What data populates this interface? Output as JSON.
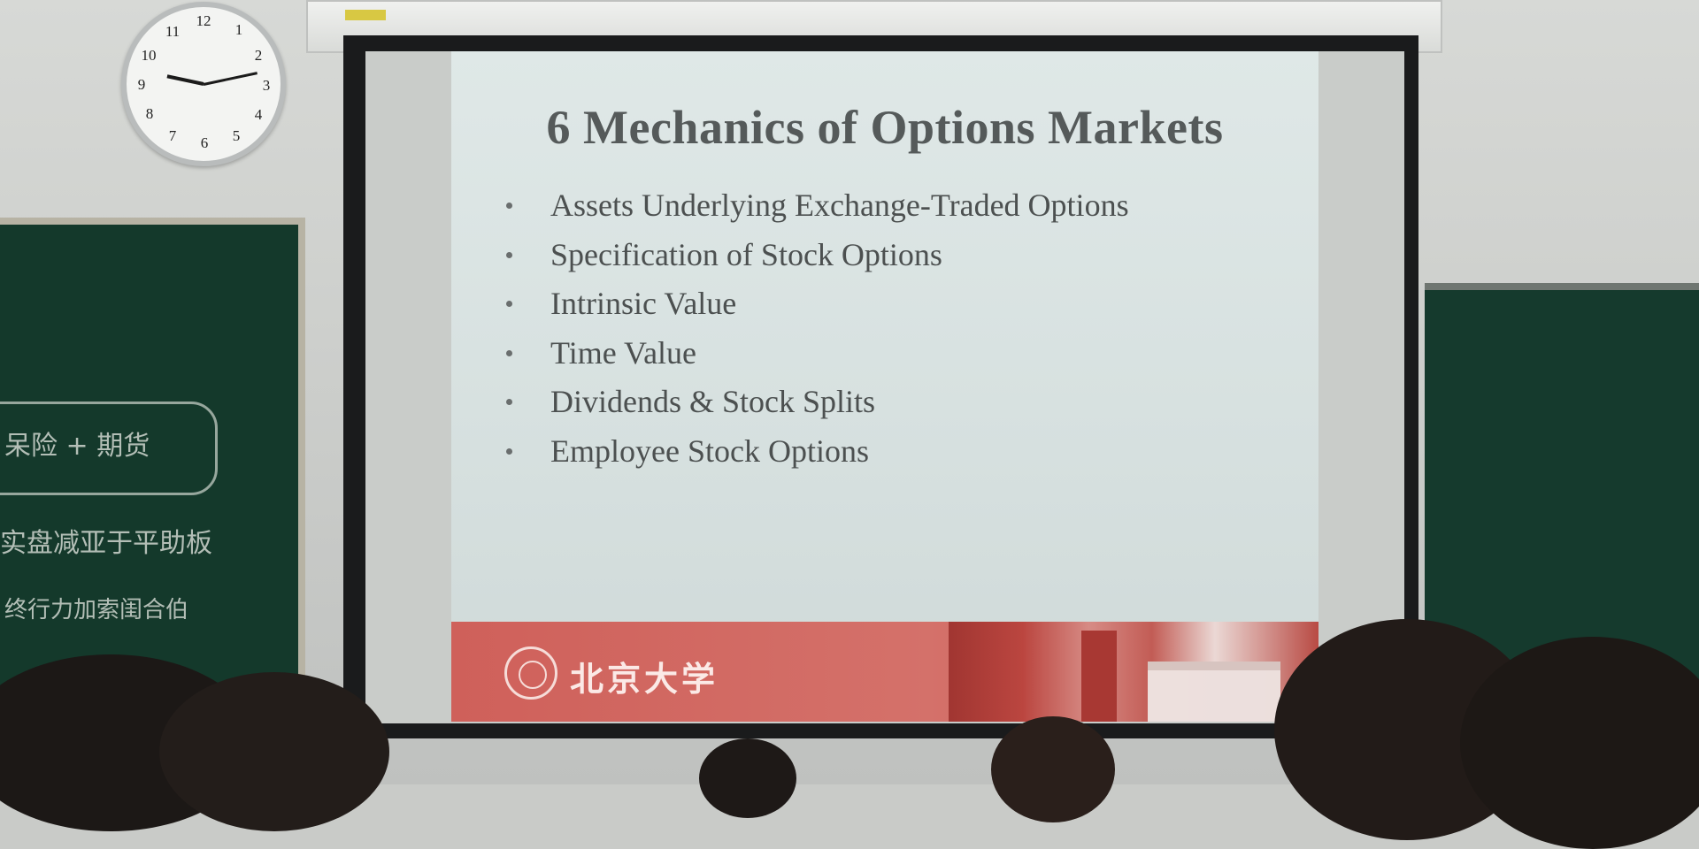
{
  "clock": {
    "numbers": [
      "12",
      "1",
      "2",
      "3",
      "4",
      "5",
      "6",
      "7",
      "8",
      "9",
      "10",
      "11"
    ]
  },
  "slide": {
    "title": "6 Mechanics of Options Markets",
    "bullets": [
      "Assets Underlying Exchange-Traded Options",
      "Specification of Stock Options",
      "Intrinsic Value",
      "Time Value",
      "Dividends & Stock Splits",
      "Employee Stock Options"
    ],
    "footer_university": "北京大学"
  },
  "chalkboard": {
    "lines": [
      "呆险 + 期货",
      "实盘减亚于平助板",
      "终行力加索闺合伯"
    ]
  }
}
